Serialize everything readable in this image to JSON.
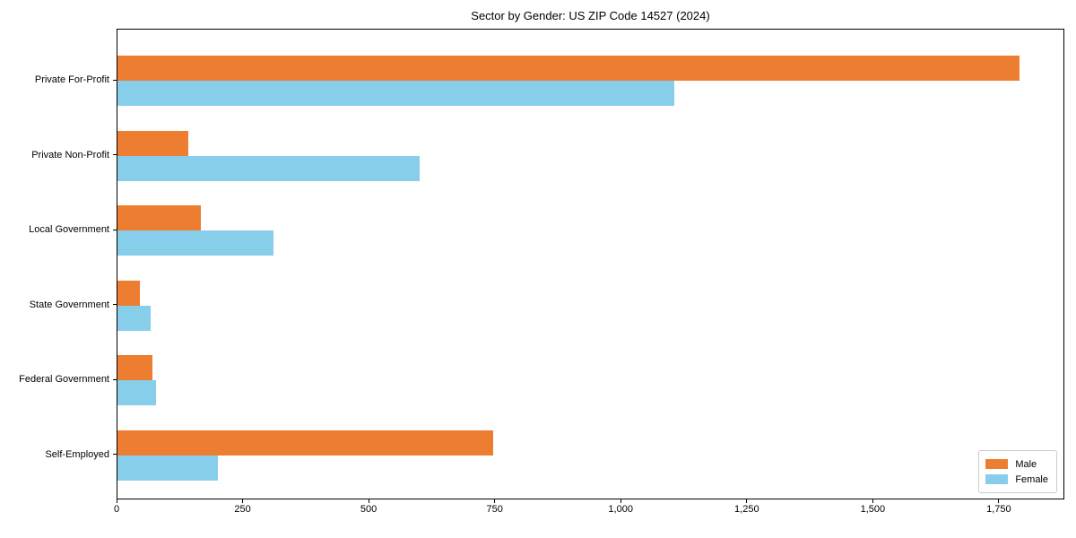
{
  "title": "Sector by Gender: US ZIP Code 14527 (2024)",
  "colors": {
    "male": "#ED7D31",
    "female": "#87CEEB",
    "spine": "#000000",
    "legend_border": "#cccccc",
    "text": "#000000",
    "background": "#ffffff"
  },
  "legend": {
    "position": "lower right",
    "entries": [
      "Male",
      "Female"
    ]
  },
  "chart_data": {
    "type": "bar",
    "orientation": "horizontal",
    "title": "Sector by Gender: US ZIP Code 14527 (2024)",
    "categories": [
      "Private For-Profit",
      "Private Non-Profit",
      "Local Government",
      "State Government",
      "Federal Government",
      "Self-Employed"
    ],
    "series": [
      {
        "name": "Male",
        "color": "#ED7D31",
        "values": [
          1790,
          140,
          165,
          45,
          70,
          745
        ]
      },
      {
        "name": "Female",
        "color": "#87CEEB",
        "values": [
          1105,
          600,
          310,
          65,
          77,
          200
        ]
      }
    ],
    "xlabel": "",
    "ylabel": "",
    "xlim": [
      0,
      1880
    ],
    "xticks": [
      0,
      250,
      500,
      750,
      1000,
      1250,
      1500,
      1750
    ],
    "xtick_labels": [
      "0",
      "250",
      "500",
      "750",
      "1,000",
      "1,250",
      "1,500",
      "1,750"
    ],
    "grid": false,
    "legend_position": "lower right"
  }
}
